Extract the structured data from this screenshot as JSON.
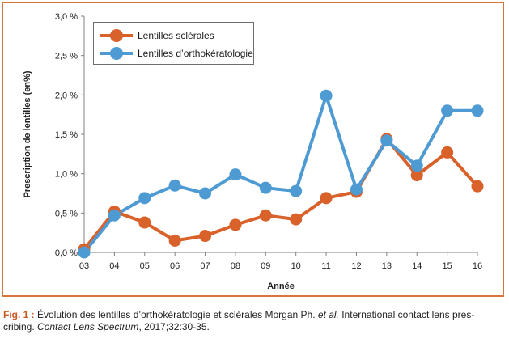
{
  "chart_data": {
    "type": "line",
    "categories": [
      "03",
      "04",
      "05",
      "06",
      "07",
      "08",
      "09",
      "10",
      "11",
      "12",
      "13",
      "14",
      "15",
      "16"
    ],
    "series": [
      {
        "name": "Lentilles sclérales",
        "color": "#d9612a",
        "values": [
          0.04,
          0.52,
          0.38,
          0.15,
          0.21,
          0.35,
          0.47,
          0.42,
          0.69,
          0.77,
          1.44,
          0.98,
          1.27,
          0.84
        ]
      },
      {
        "name": "Lentilles d’orthokératologie",
        "color": "#4e9bd3",
        "values": [
          0.0,
          0.47,
          0.69,
          0.85,
          0.75,
          0.99,
          0.82,
          0.78,
          1.99,
          0.8,
          1.42,
          1.1,
          1.8,
          1.8
        ]
      }
    ],
    "xlabel": "Année",
    "ylabel": "Prescription de lentilles (en%)",
    "ylim": [
      0,
      3.0
    ],
    "yticks": [
      "0,0 %",
      "0,5 %",
      "1,0 %",
      "1,5 %",
      "2,0 %",
      "2,5 %",
      "3,0 %"
    ],
    "legend_position": "top-left",
    "grid": false
  },
  "caption": {
    "fig_label": "Fig. 1 :",
    "text_1": " Évolution des lentilles d’orthokératologie et sclérales Morgan Ph. ",
    "et_al": "et al.",
    "text_2": " International contact lens pres-",
    "text_3": "cribing. ",
    "journal": "Contact Lens Spectrum",
    "text_4": ", 2017;32:30-35."
  }
}
